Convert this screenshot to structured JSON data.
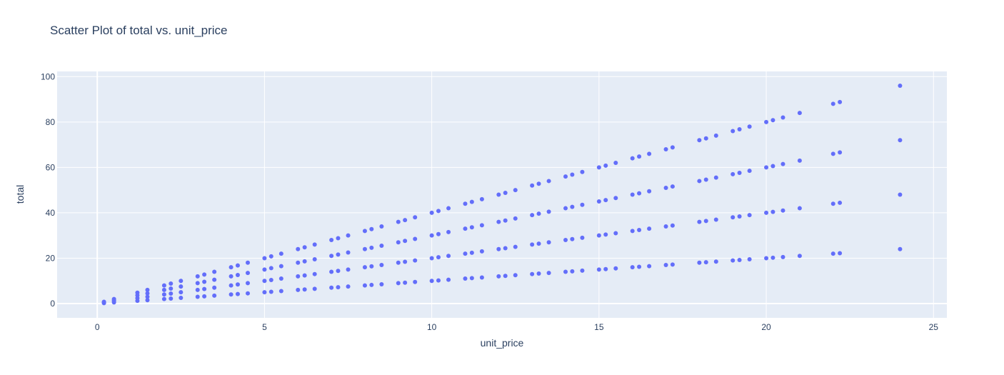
{
  "chart_data": {
    "type": "scatter",
    "title": "Scatter Plot of total vs. unit_price",
    "xlabel": "unit_price",
    "ylabel": "total",
    "xlim": [
      -1.2,
      25.4
    ],
    "ylim": [
      -6.3,
      102.3
    ],
    "xticks": [
      0,
      5,
      10,
      15,
      20,
      25
    ],
    "yticks": [
      0,
      20,
      40,
      60,
      80,
      100
    ],
    "grid": true,
    "colors": {
      "marker": "#636efa",
      "plot_bg": "#e5ecf6",
      "grid": "#ffffff",
      "text": "#2a3f5f"
    },
    "multipliers": [
      1,
      2,
      3,
      4
    ],
    "unit_prices": [
      0.2,
      0.5,
      1.2,
      1.5,
      2.0,
      2.2,
      2.5,
      3.0,
      3.2,
      3.5,
      4.0,
      4.2,
      4.5,
      5.0,
      5.2,
      5.5,
      6.0,
      6.2,
      6.5,
      7.0,
      7.2,
      7.5,
      8.0,
      8.2,
      8.5,
      9.0,
      9.2,
      9.5,
      10.0,
      10.2,
      10.5,
      11.0,
      11.2,
      11.5,
      12.0,
      12.2,
      12.5,
      13.0,
      13.2,
      13.5,
      14.0,
      14.2,
      14.5,
      15.0,
      15.2,
      15.5,
      16.0,
      16.2,
      16.5,
      17.0,
      17.2,
      18.0,
      18.2,
      18.5,
      19.0,
      19.2,
      19.5,
      20.0,
      20.2,
      20.5,
      21.0,
      22.0,
      22.2,
      24.0
    ],
    "points_note_free": true
  }
}
